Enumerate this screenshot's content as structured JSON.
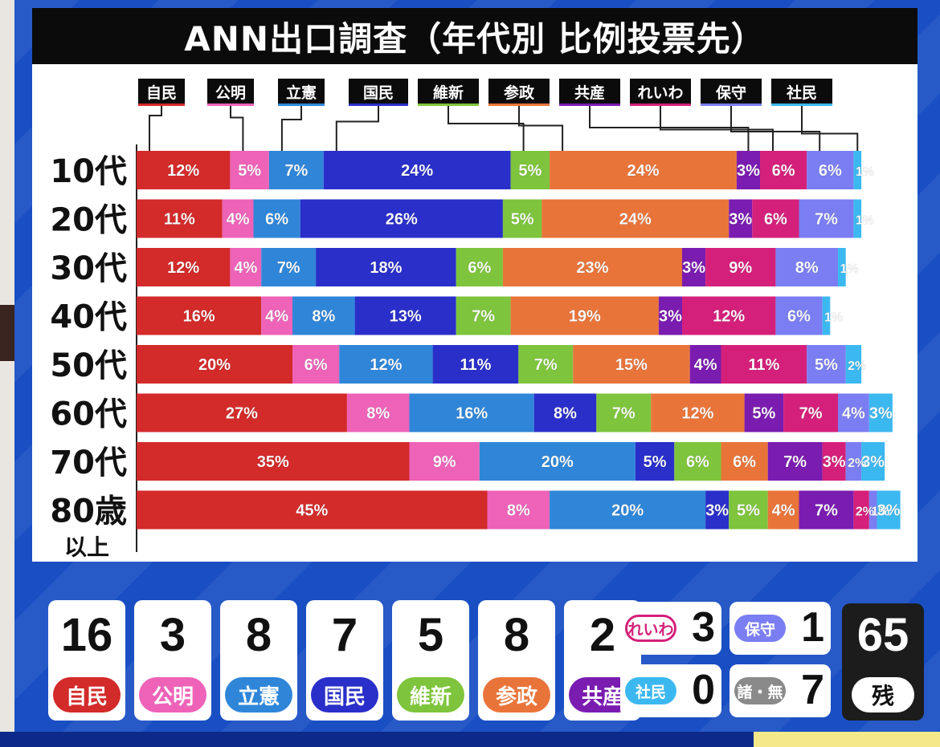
{
  "title": "ANN出口調査（年代別 比例投票先）",
  "parties": [
    {
      "name": "自民",
      "color": "#d32a2a"
    },
    {
      "name": "公明",
      "color": "#ee62b8"
    },
    {
      "name": "立憲",
      "color": "#2f86d8"
    },
    {
      "name": "国民",
      "color": "#2a2fc9"
    },
    {
      "name": "維新",
      "color": "#7ec43c"
    },
    {
      "name": "参政",
      "color": "#e9743a"
    },
    {
      "name": "共産",
      "color": "#7a1cb0"
    },
    {
      "name": "れいわ",
      "color": "#d4207a"
    },
    {
      "name": "保守",
      "color": "#7a7ef2"
    },
    {
      "name": "社民",
      "color": "#3cb8f0"
    }
  ],
  "chart_data": {
    "type": "bar",
    "stacked": true,
    "orientation": "horizontal",
    "title": "ANN出口調査（年代別 比例投票先）",
    "categories": [
      "10代",
      "20代",
      "30代",
      "40代",
      "50代",
      "60代",
      "70代",
      "80歳"
    ],
    "category_sublabels": [
      "",
      "",
      "",
      "",
      "",
      "",
      "",
      "以上"
    ],
    "value_suffix": "%",
    "series": [
      {
        "name": "自民",
        "values": [
          12,
          11,
          12,
          16,
          20,
          27,
          35,
          45
        ]
      },
      {
        "name": "公明",
        "values": [
          5,
          4,
          4,
          4,
          6,
          8,
          9,
          8
        ]
      },
      {
        "name": "立憲",
        "values": [
          7,
          6,
          7,
          8,
          12,
          16,
          20,
          20
        ]
      },
      {
        "name": "国民",
        "values": [
          24,
          26,
          18,
          13,
          11,
          8,
          5,
          3
        ]
      },
      {
        "name": "維新",
        "values": [
          5,
          5,
          6,
          7,
          7,
          7,
          6,
          5
        ]
      },
      {
        "name": "参政",
        "values": [
          24,
          24,
          23,
          19,
          15,
          12,
          6,
          4
        ]
      },
      {
        "name": "共産",
        "values": [
          3,
          3,
          3,
          3,
          4,
          5,
          7,
          7
        ]
      },
      {
        "name": "れいわ",
        "values": [
          6,
          6,
          9,
          12,
          11,
          7,
          3,
          2
        ]
      },
      {
        "name": "保守",
        "values": [
          6,
          7,
          8,
          6,
          5,
          4,
          2,
          1
        ]
      },
      {
        "name": "社民",
        "values": [
          1,
          1,
          1,
          1,
          2,
          3,
          3,
          3
        ]
      }
    ]
  },
  "seats": {
    "main": [
      {
        "count": "16",
        "party": "自民",
        "color": "#d32a2a"
      },
      {
        "count": "3",
        "party": "公明",
        "color": "#ee62b8"
      },
      {
        "count": "8",
        "party": "立憲",
        "color": "#2f86d8"
      },
      {
        "count": "7",
        "party": "国民",
        "color": "#2a2fc9"
      },
      {
        "count": "5",
        "party": "維新",
        "color": "#7ec43c"
      },
      {
        "count": "8",
        "party": "参政",
        "color": "#e9743a"
      },
      {
        "count": "2",
        "party": "共産",
        "color": "#7a1cb0"
      }
    ],
    "small": [
      {
        "count": "3",
        "party": "れいわ",
        "color": "#d4207a",
        "fill": "#ffffff"
      },
      {
        "count": "1",
        "party": "保守",
        "color": "#7a7ef2",
        "fill": "#7a7ef2"
      },
      {
        "count": "0",
        "party": "社民",
        "color": "#3cb8f0",
        "fill": "#3cb8f0"
      },
      {
        "count": "7",
        "party": "諸・無",
        "color": "#8a8a8a",
        "fill": "#8a8a8a"
      }
    ],
    "remaining": {
      "count": "65",
      "label": "残"
    }
  }
}
